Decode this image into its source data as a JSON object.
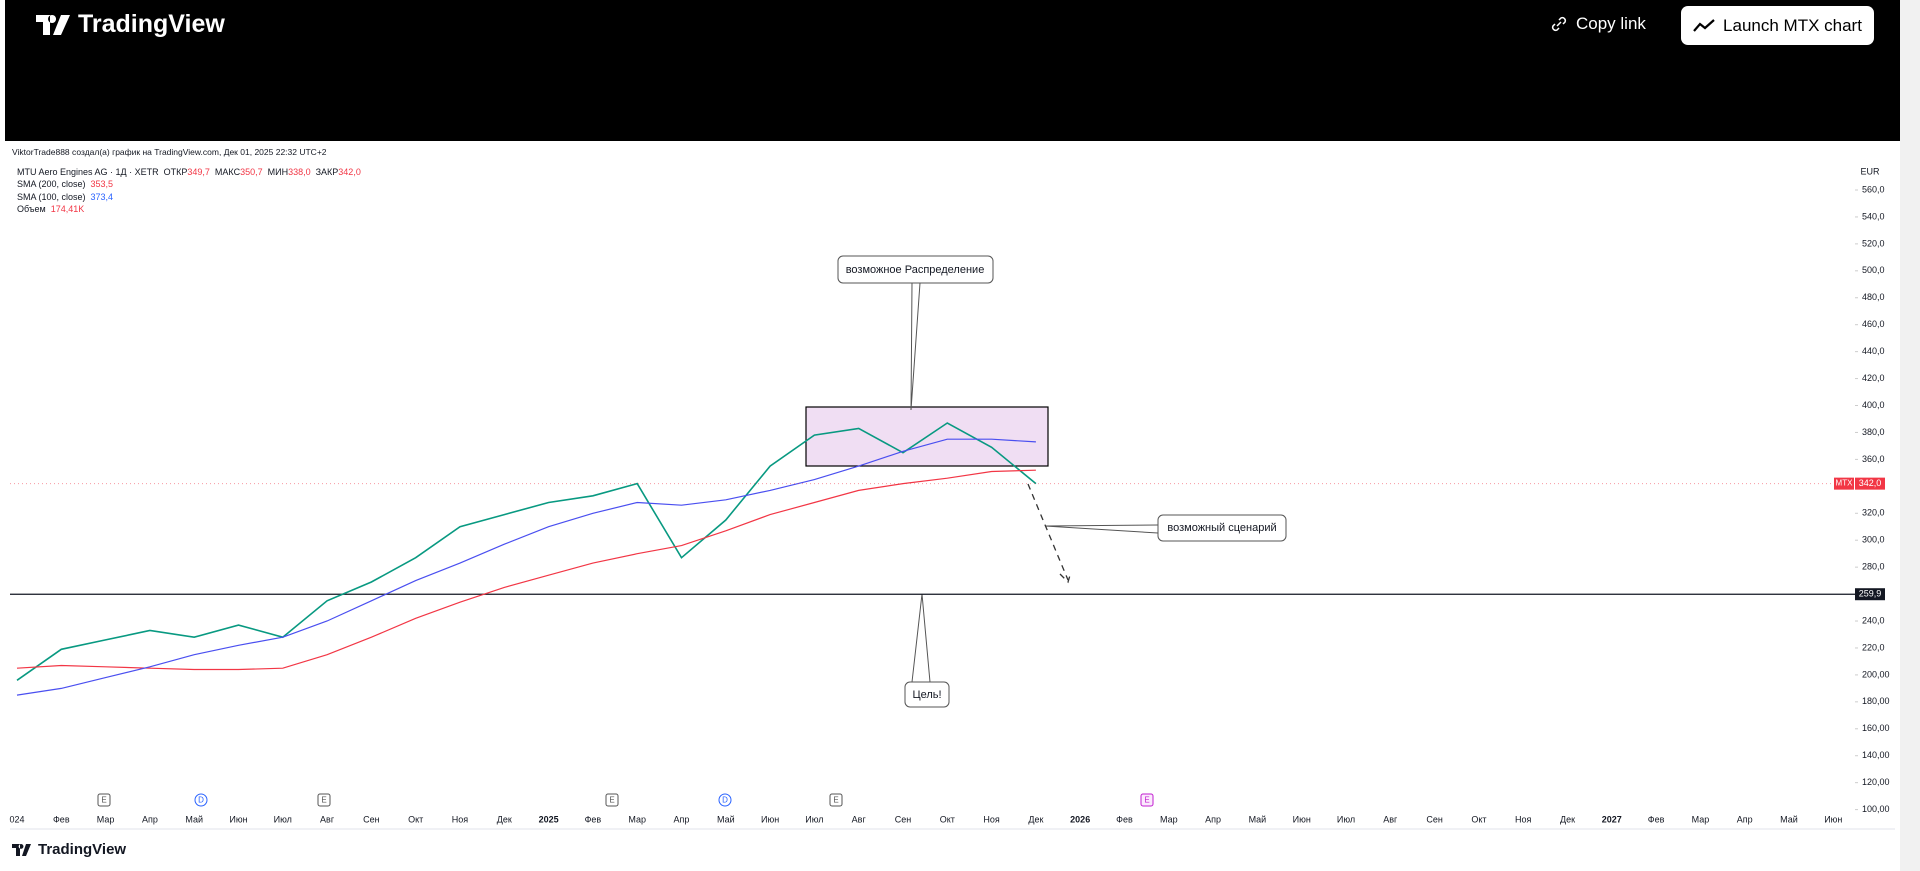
{
  "header": {
    "logo": "TradingView",
    "copy_link": "Copy link",
    "launch_button": "Launch MTX chart"
  },
  "chart_data": {
    "type": "line",
    "attribution": "ViktorTrade888 создал(а) график на TradingView.com, Дек 01, 2025 22:32 UTC+2",
    "legend": {
      "instrument": "MTU Aero Engines AG · 1Д · XETR",
      "ohlc": [
        {
          "label": "ОТКР",
          "value": "349,7"
        },
        {
          "label": "МАКС",
          "value": "350,7"
        },
        {
          "label": "МИН",
          "value": "338,0"
        },
        {
          "label": "ЗАКР",
          "value": "342,0"
        }
      ],
      "indicators": [
        {
          "label": "SMA (200, close)",
          "value": "353,5"
        },
        {
          "label": "SMA (100, close)",
          "value": "373,4"
        },
        {
          "label": "Объем",
          "value": "174,41K"
        }
      ]
    },
    "currency": "EUR",
    "categories": [
      "024",
      "Фев",
      "Мар",
      "Апр",
      "Май",
      "Июн",
      "Июл",
      "Авг",
      "Сен",
      "Окт",
      "Ноя",
      "Дек",
      "2025",
      "Фев",
      "Мар",
      "Апр",
      "Май",
      "Июн",
      "Июл",
      "Авг",
      "Сен",
      "Окт",
      "Ноя",
      "Дек",
      "2026",
      "Фев",
      "Мар",
      "Апр",
      "Май",
      "Июн",
      "Июл",
      "Авг",
      "Сен",
      "Окт",
      "Ноя",
      "Дек",
      "2027",
      "Фев",
      "Мар",
      "Апр",
      "Май",
      "Июн"
    ],
    "series": [
      {
        "color": "#089981",
        "values": [
          196,
          219,
          226,
          233,
          228,
          237,
          228,
          255,
          269,
          287,
          310,
          319,
          328,
          333,
          342,
          287,
          315,
          355,
          378,
          383,
          365,
          387,
          369,
          342,
          null,
          null,
          null,
          null,
          null,
          null,
          null,
          null,
          null,
          null,
          null,
          null,
          null,
          null,
          null,
          null,
          null,
          null
        ]
      },
      {
        "color": "#f23645",
        "values": [
          205,
          207,
          206,
          205,
          204,
          204,
          205,
          215,
          228,
          242,
          254,
          265,
          274,
          283,
          290,
          296,
          307,
          319,
          328,
          337,
          342,
          346,
          351,
          352,
          null,
          null,
          null,
          null,
          null,
          null,
          null,
          null,
          null,
          null,
          null,
          null,
          null,
          null,
          null,
          null,
          null,
          null
        ]
      },
      {
        "color": "#4a4ff0",
        "values": [
          185,
          190,
          198,
          206,
          215,
          222,
          228,
          240,
          255,
          270,
          283,
          297,
          310,
          320,
          328,
          326,
          330,
          337,
          345,
          355,
          366,
          375,
          375,
          373,
          null,
          null,
          null,
          null,
          null,
          null,
          null,
          null,
          null,
          null,
          null,
          null,
          null,
          null,
          null,
          null,
          null,
          null
        ]
      }
    ],
    "ylim": [
      100,
      560
    ],
    "yticks": [
      {
        "value": 560,
        "label": "560,0"
      },
      {
        "value": 540,
        "label": "540,0"
      },
      {
        "value": 520,
        "label": "520,0"
      },
      {
        "value": 500,
        "label": "500,0"
      },
      {
        "value": 480,
        "label": "480,0"
      },
      {
        "value": 460,
        "label": "460,0"
      },
      {
        "value": 440,
        "label": "440,0"
      },
      {
        "value": 420,
        "label": "420,0"
      },
      {
        "value": 400,
        "label": "400,0"
      },
      {
        "value": 380,
        "label": "380,0"
      },
      {
        "value": 360,
        "label": "360,0"
      },
      {
        "value": 320,
        "label": "320,0"
      },
      {
        "value": 300,
        "label": "300,0"
      },
      {
        "value": 280,
        "label": "280,0"
      },
      {
        "value": 240,
        "label": "240,0"
      },
      {
        "value": 220,
        "label": "220,0"
      },
      {
        "value": 200,
        "label": "200,00"
      },
      {
        "value": 180,
        "label": "180,00"
      },
      {
        "value": 160,
        "label": "160,00"
      },
      {
        "value": 140,
        "label": "140,00"
      },
      {
        "value": 120,
        "label": "120,00"
      },
      {
        "value": 100,
        "label": "100,00"
      }
    ],
    "grid": false,
    "price_label": {
      "symbol": "MTX",
      "value": 342,
      "label": "342,0"
    },
    "level": {
      "value": 259.9,
      "label": "259,9"
    },
    "annotations": [
      "возможное Распределение",
      "возможный сценарий",
      "Цель!"
    ],
    "events": [
      "E",
      "D",
      "E",
      "E",
      "D",
      "E",
      "E"
    ]
  },
  "footer": {
    "logo": "TradingView"
  }
}
